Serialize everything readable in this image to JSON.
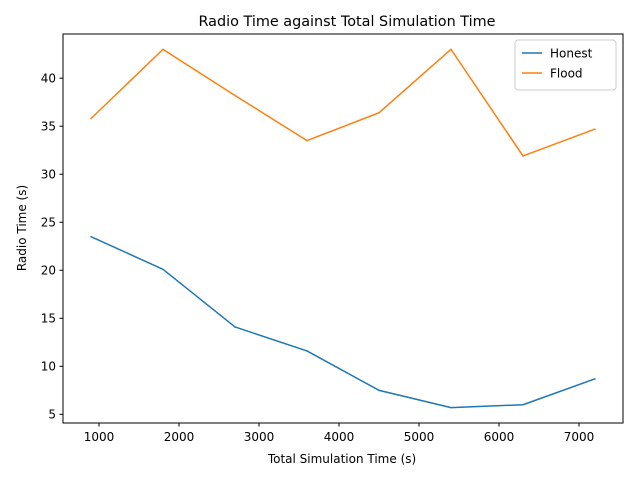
{
  "chart_data": {
    "type": "line",
    "title": "Radio Time against Total Simulation Time",
    "xlabel": "Total Simulation Time (s)",
    "ylabel": "Radio Time (s)",
    "x": [
      900,
      1800,
      2700,
      3600,
      4500,
      5400,
      6300,
      7200
    ],
    "xlim": [
      550,
      7550
    ],
    "ylim": [
      4.1,
      44.6
    ],
    "xticks": [
      1000,
      2000,
      3000,
      4000,
      5000,
      6000,
      7000
    ],
    "xtick_labels": [
      "1000",
      "2000",
      "3000",
      "4000",
      "5000",
      "6000",
      "7000"
    ],
    "yticks": [
      5,
      10,
      15,
      20,
      25,
      30,
      35,
      40
    ],
    "ytick_labels": [
      "5",
      "10",
      "15",
      "20",
      "25",
      "30",
      "35",
      "40"
    ],
    "grid": false,
    "legend_position": "top-right",
    "series": [
      {
        "name": "Honest",
        "color": "#1f77b4",
        "values": [
          23.5,
          20.1,
          14.1,
          11.6,
          7.5,
          5.7,
          6.0,
          8.7
        ]
      },
      {
        "name": "Flood",
        "color": "#ff7f0e",
        "values": [
          35.8,
          43.0,
          38.2,
          33.5,
          36.4,
          43.0,
          31.9,
          34.7
        ]
      }
    ]
  }
}
